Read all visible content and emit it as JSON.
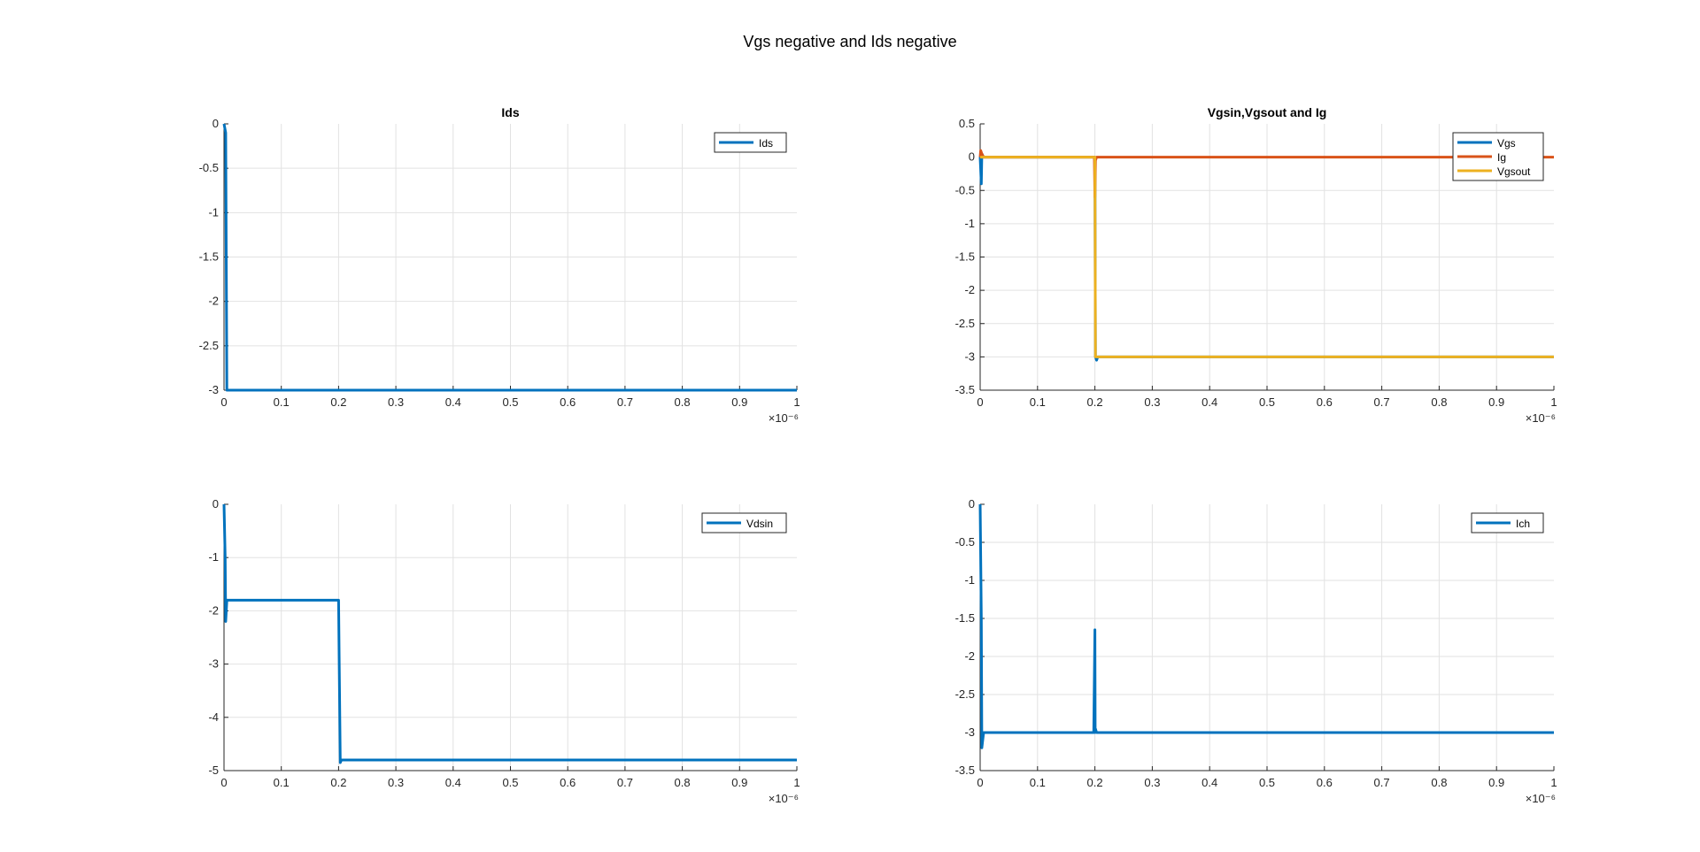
{
  "figure_title": "Vgs negative and Ids negative",
  "colors": {
    "blue": "#0072BD",
    "orange": "#D95319",
    "yellow": "#EDB120",
    "grid": "#e2e2e2",
    "axis": "#262626"
  },
  "chart_data": [
    {
      "type": "line",
      "title": "Ids",
      "xlabel": "",
      "ylabel": "",
      "x_exponent_label": "×10⁻⁶",
      "xlim": [
        0,
        1
      ],
      "ylim": [
        -3,
        0
      ],
      "xticks": [
        0,
        0.1,
        0.2,
        0.3,
        0.4,
        0.5,
        0.6,
        0.7,
        0.8,
        0.9,
        1
      ],
      "yticks": [
        0,
        -0.5,
        -1,
        -1.5,
        -2,
        -2.5,
        -3
      ],
      "grid": true,
      "legend_position": "top-right",
      "series": [
        {
          "name": "Ids",
          "color": "#0072BD",
          "x": [
            0,
            0.003,
            0.005,
            1
          ],
          "y": [
            0,
            -0.1,
            -3,
            -3
          ]
        }
      ]
    },
    {
      "type": "line",
      "title": "Vgsin,Vgsout and Ig",
      "xlabel": "",
      "ylabel": "",
      "x_exponent_label": "×10⁻⁶",
      "xlim": [
        0,
        1
      ],
      "ylim": [
        -3.5,
        0.5
      ],
      "xticks": [
        0,
        0.1,
        0.2,
        0.3,
        0.4,
        0.5,
        0.6,
        0.7,
        0.8,
        0.9,
        1
      ],
      "yticks": [
        0.5,
        0,
        -0.5,
        -1,
        -1.5,
        -2,
        -2.5,
        -3,
        -3.5
      ],
      "grid": true,
      "legend_position": "top-right",
      "series": [
        {
          "name": "Vgs",
          "color": "#0072BD",
          "x": [
            0,
            0.002,
            0.003,
            0.006,
            0.2,
            0.201,
            0.203,
            0.205,
            1
          ],
          "y": [
            0,
            -0.4,
            0.05,
            0,
            0,
            -3.0,
            -3.05,
            -3.0,
            -3.0
          ]
        },
        {
          "name": "Ig",
          "color": "#D95319",
          "x": [
            0,
            0.001,
            0.003,
            0.006,
            0.199,
            0.2,
            0.201,
            0.203,
            1
          ],
          "y": [
            0,
            0.1,
            0.05,
            0,
            0,
            -0.6,
            -0.05,
            0,
            0
          ]
        },
        {
          "name": "Vgsout",
          "color": "#EDB120",
          "x": [
            0,
            0.2,
            0.201,
            0.204,
            1
          ],
          "y": [
            0,
            0,
            -3.0,
            -3.0,
            -3.0
          ]
        }
      ]
    },
    {
      "type": "line",
      "title": "",
      "xlabel": "",
      "ylabel": "",
      "x_exponent_label": "×10⁻⁶",
      "xlim": [
        0,
        1
      ],
      "ylim": [
        -5,
        0
      ],
      "xticks": [
        0,
        0.1,
        0.2,
        0.3,
        0.4,
        0.5,
        0.6,
        0.7,
        0.8,
        0.9,
        1
      ],
      "yticks": [
        0,
        -1,
        -2,
        -3,
        -4,
        -5
      ],
      "grid": true,
      "legend_position": "top-right",
      "series": [
        {
          "name": "Vdsin",
          "color": "#0072BD",
          "x": [
            0,
            0.002,
            0.003,
            0.005,
            0.008,
            0.2,
            0.201,
            0.203,
            0.205,
            1
          ],
          "y": [
            0,
            -1.0,
            -2.2,
            -1.8,
            -1.8,
            -1.8,
            -2.8,
            -4.85,
            -4.8,
            -4.8
          ]
        }
      ]
    },
    {
      "type": "line",
      "title": "",
      "xlabel": "",
      "ylabel": "",
      "x_exponent_label": "×10⁻⁶",
      "xlim": [
        0,
        1
      ],
      "ylim": [
        -3.5,
        0
      ],
      "xticks": [
        0,
        0.1,
        0.2,
        0.3,
        0.4,
        0.5,
        0.6,
        0.7,
        0.8,
        0.9,
        1
      ],
      "yticks": [
        0,
        -0.5,
        -1,
        -1.5,
        -2,
        -2.5,
        -3,
        -3.5
      ],
      "grid": true,
      "legend_position": "top-right",
      "series": [
        {
          "name": "Ich",
          "color": "#0072BD",
          "x": [
            0,
            0.002,
            0.003,
            0.006,
            0.198,
            0.2,
            0.2005,
            0.201,
            0.203,
            1
          ],
          "y": [
            0,
            -1.5,
            -3.2,
            -3.0,
            -3.0,
            -1.65,
            -3.0,
            -2.95,
            -3.0,
            -3.0
          ]
        }
      ]
    }
  ]
}
